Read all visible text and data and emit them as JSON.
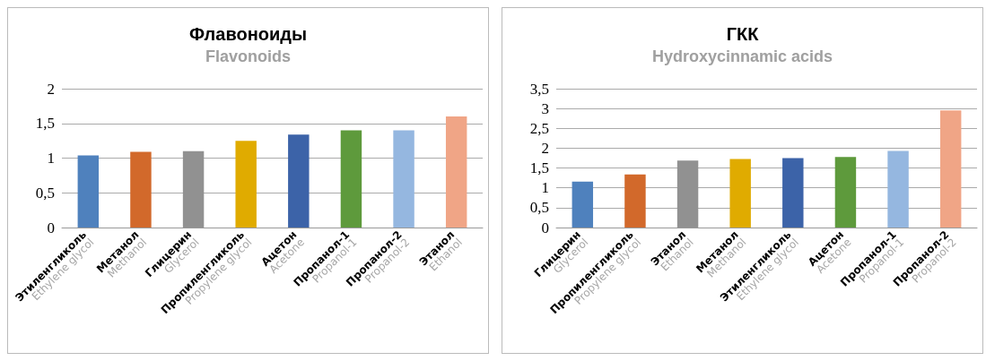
{
  "chart_data": [
    {
      "type": "bar",
      "title": "Флавоноиды",
      "subtitle": "Flavonoids",
      "categories": [
        "Этиленгликоль\nEthylene glycol",
        "Метанол\nMethanol",
        "Глицерин\nGlycerol",
        "Пропиленгликоль\nPropylene glycol",
        "Ацетон\nAcetone",
        "Пропанол-1\nPropanol-1",
        "Пропанол-2\nPropanol-2",
        "Этанол\nEthanol"
      ],
      "values": [
        1.04,
        1.09,
        1.1,
        1.25,
        1.34,
        1.4,
        1.4,
        1.6
      ],
      "colors": [
        "#4f81bd",
        "#d2692b",
        "#919191",
        "#e0ab00",
        "#3c63a8",
        "#5e9a3c",
        "#95b7e0",
        "#f0a586"
      ],
      "ylim": [
        0,
        2
      ],
      "yticks": [
        0,
        {
          "value": 0.5,
          "label": "0,5"
        },
        1,
        {
          "value": 1.5,
          "label": "1,5"
        },
        2
      ],
      "grid": "y"
    },
    {
      "type": "bar",
      "title": "ГКК",
      "subtitle": "Hydroxycinnamic acids",
      "categories": [
        "Глицерин\nGlycerol",
        "Пропиленгликоль\nPropylene glycol",
        "Этанол\nEthanol",
        "Метанол\nMethanol",
        "Этиленгликоль\nEthylene glycol",
        "Ацетон\nAcetone",
        "Пропанол-1\nPropanol-1",
        "Пропанол-2\nPropanol-2"
      ],
      "values": [
        1.16,
        1.34,
        1.69,
        1.73,
        1.75,
        1.78,
        1.93,
        2.95
      ],
      "colors": [
        "#4f81bd",
        "#d2692b",
        "#919191",
        "#e0ab00",
        "#3c63a8",
        "#5e9a3c",
        "#95b7e0",
        "#f0a586"
      ],
      "ylim": [
        0,
        3.5
      ],
      "yticks": [
        0,
        {
          "value": 0.5,
          "label": "0,5"
        },
        1,
        {
          "value": 1.5,
          "label": "1,5"
        },
        2,
        {
          "value": 2.5,
          "label": "2,5"
        },
        3,
        {
          "value": 3.5,
          "label": "3,5"
        }
      ],
      "grid": "y"
    }
  ]
}
